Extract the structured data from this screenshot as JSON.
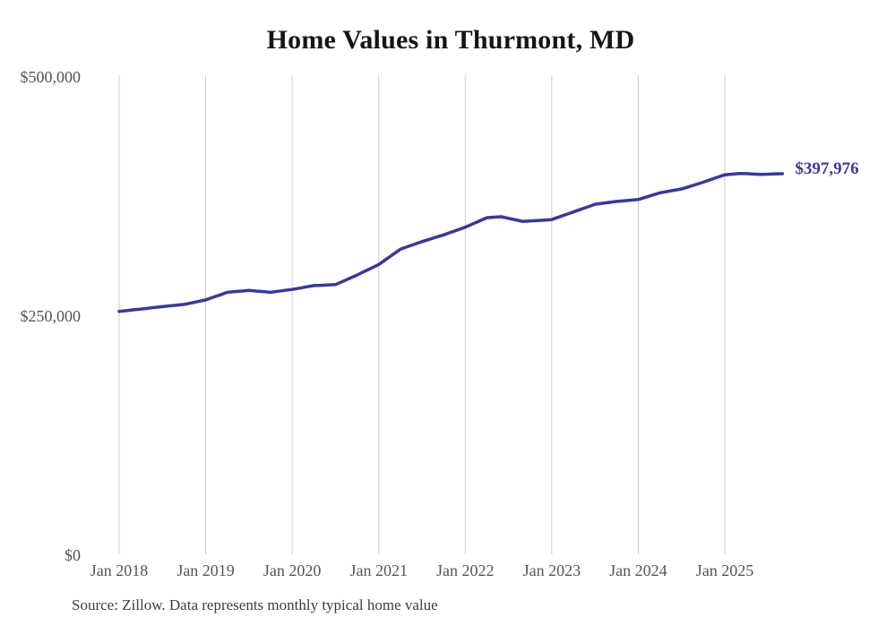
{
  "chart_data": {
    "type": "line",
    "title": "Home Values in Thurmont, MD",
    "xlabel": "",
    "ylabel": "",
    "ylim": [
      0,
      500000
    ],
    "grid": "vertical-only",
    "legend_position": "none",
    "x_ticks": [
      "Jan 2018",
      "Jan 2019",
      "Jan 2020",
      "Jan 2021",
      "Jan 2022",
      "Jan 2023",
      "Jan 2024",
      "Jan 2025"
    ],
    "y_ticks": [
      {
        "value": 0,
        "label": "$0"
      },
      {
        "value": 250000,
        "label": "$250,000"
      },
      {
        "value": 500000,
        "label": "$500,000"
      }
    ],
    "end_label": "$397,976",
    "last_value": 397976,
    "series": [
      {
        "name": "Monthly typical home value",
        "unit": "USD",
        "start_month": "Jan 2018",
        "end_month": "Sep 2025",
        "values": [
          254000,
          254800,
          255700,
          256500,
          257300,
          258200,
          259000,
          259800,
          260500,
          261300,
          262800,
          264400,
          266000,
          268700,
          271300,
          274000,
          274700,
          275300,
          276000,
          275300,
          274700,
          274000,
          275000,
          276000,
          277000,
          278300,
          279700,
          281000,
          281300,
          281700,
          282000,
          285300,
          288700,
          292000,
          295700,
          299300,
          303000,
          308300,
          313700,
          319000,
          321700,
          324300,
          327000,
          329300,
          331700,
          334000,
          336700,
          339300,
          342000,
          345300,
          348700,
          352000,
          352500,
          353000,
          351300,
          349700,
          348000,
          348500,
          349000,
          349500,
          350000,
          352700,
          355300,
          358000,
          360700,
          363300,
          366000,
          367000,
          368000,
          369000,
          369700,
          370300,
          371000,
          373300,
          375700,
          378000,
          379300,
          380700,
          382000,
          384300,
          386700,
          389000,
          391700,
          394300,
          396800,
          397500,
          398200,
          398000,
          397600,
          397300,
          397500,
          397800,
          397976
        ]
      }
    ]
  },
  "source_note": "Source: Zillow. Data represents monthly typical home value",
  "colors": {
    "line": "#3b35a3",
    "end_label": "#3b35a3",
    "gridline": "#cccccc",
    "axis_label": "#555555",
    "title": "#151515",
    "source": "#3d3d3d",
    "background": "#ffffff"
  }
}
